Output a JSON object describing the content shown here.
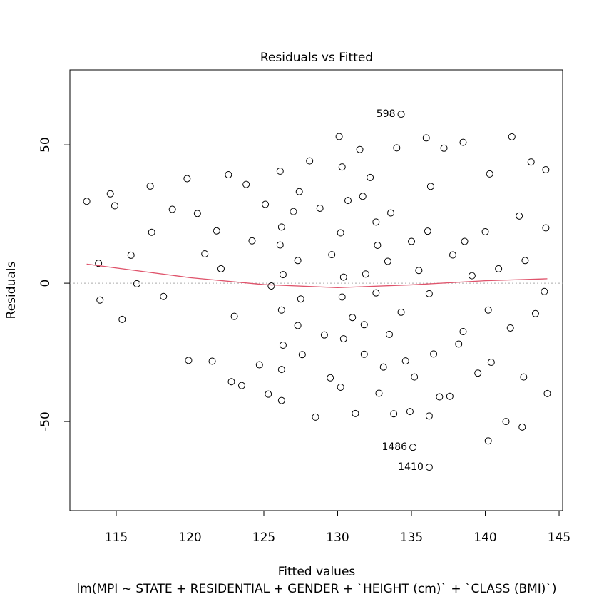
{
  "chart_data": {
    "type": "scatter",
    "title": "Residuals vs Fitted",
    "x_label": "Fitted values",
    "subtitle": "lm(MPI ~ STATE + RESIDENTIAL + GENDER + `HEIGHT (cm)` + `CLASS (BMI)`)",
    "y_label": "Residuals",
    "xlim": [
      111.86,
      145.24
    ],
    "ylim": [
      -82.2,
      77.1
    ],
    "xticks": [
      115,
      120,
      125,
      130,
      135,
      140,
      145
    ],
    "yticks": [
      -50,
      0,
      50
    ],
    "reference_line": 0,
    "point_color": "#000000",
    "x": [
      113.0,
      113.8,
      113.9,
      114.6,
      114.9,
      115.4,
      116.0,
      116.4,
      117.3,
      117.4,
      118.2,
      118.8,
      119.8,
      119.9,
      120.5,
      121.0,
      121.5,
      121.8,
      122.1,
      122.6,
      122.8,
      123.0,
      123.5,
      123.8,
      124.2,
      124.7,
      125.1,
      125.3,
      125.5,
      126.1,
      126.2,
      126.2,
      126.3,
      126.2,
      126.3,
      126.1,
      126.2,
      127.0,
      127.3,
      127.4,
      127.5,
      127.3,
      127.6,
      128.1,
      128.5,
      128.8,
      129.1,
      129.5,
      129.6,
      130.1,
      130.3,
      130.2,
      130.4,
      130.3,
      130.2,
      130.4,
      130.7,
      131.0,
      131.2,
      131.5,
      131.8,
      131.9,
      131.7,
      131.8,
      132.2,
      132.6,
      132.7,
      132.8,
      132.6,
      133.1,
      133.4,
      133.6,
      133.5,
      133.8,
      134.0,
      134.3,
      134.6,
      134.9,
      135.0,
      135.2,
      135.5,
      136.0,
      136.2,
      136.1,
      136.2,
      136.3,
      136.5,
      136.9,
      137.2,
      137.6,
      137.8,
      138.2,
      138.5,
      138.5,
      138.6,
      139.1,
      139.5,
      140.0,
      140.2,
      140.3,
      140.2,
      140.4,
      140.9,
      141.4,
      141.8,
      141.7,
      142.3,
      142.6,
      142.7,
      142.5,
      143.1,
      143.4,
      144.1,
      144.2,
      144.1,
      144.0
    ],
    "y": [
      29.6,
      7.2,
      -6.1,
      32.3,
      28.0,
      -13.1,
      10.1,
      -0.2,
      35.1,
      18.4,
      -4.8,
      26.7,
      37.8,
      -27.9,
      25.2,
      10.6,
      -28.2,
      18.9,
      5.2,
      39.2,
      -35.6,
      -12.0,
      -37.0,
      35.7,
      15.3,
      -29.5,
      28.5,
      -40.1,
      -1.0,
      40.5,
      -42.4,
      20.3,
      -22.4,
      -9.7,
      3.1,
      13.8,
      -31.2,
      25.9,
      -15.3,
      33.1,
      -5.7,
      8.2,
      -25.8,
      44.2,
      -48.4,
      27.1,
      -18.7,
      -34.2,
      10.3,
      53.0,
      -5.0,
      18.2,
      -20.1,
      42.0,
      -37.6,
      2.2,
      29.9,
      -12.4,
      -47.1,
      48.3,
      -25.7,
      3.3,
      31.4,
      -15.0,
      38.2,
      -3.5,
      13.7,
      -39.8,
      22.1,
      -30.3,
      7.9,
      25.4,
      -18.5,
      -47.2,
      48.9,
      -10.5,
      -28.1,
      -46.4,
      15.1,
      -33.9,
      4.6,
      52.5,
      -48.0,
      18.8,
      -3.8,
      35.0,
      -25.6,
      -41.1,
      48.8,
      -40.9,
      10.2,
      -22.0,
      50.9,
      -17.5,
      15.1,
      2.7,
      -32.5,
      18.6,
      -57.0,
      39.5,
      -9.7,
      -28.6,
      5.2,
      -50.0,
      52.9,
      -16.2,
      24.3,
      -33.9,
      8.2,
      -52.0,
      43.8,
      -11.0,
      41.0,
      -39.9,
      20.0,
      -3.0
    ],
    "labeled_points": {
      "x": [
        134.3,
        135.1,
        136.2
      ],
      "y": [
        61.1,
        -59.3,
        -66.5
      ],
      "labels": [
        "598",
        "1486",
        "1410"
      ]
    },
    "smooth": {
      "color": "#df536b",
      "x": [
        113.0,
        116.0,
        120.0,
        125.0,
        130.0,
        135.0,
        140.0,
        144.2
      ],
      "y": [
        6.9,
        4.8,
        2.0,
        -0.5,
        -1.6,
        -0.6,
        0.9,
        1.6
      ]
    }
  }
}
